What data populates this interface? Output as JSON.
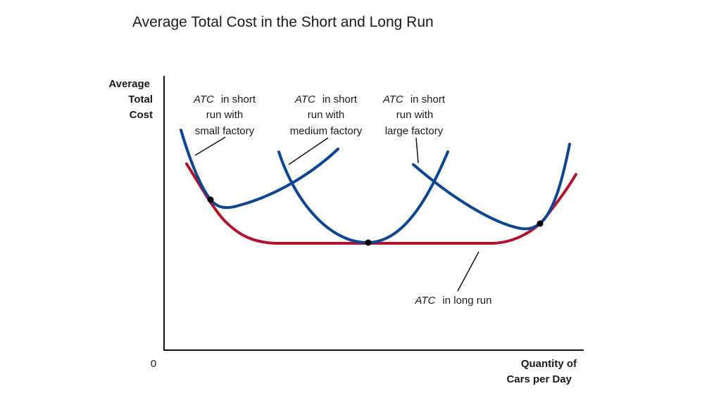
{
  "chart_data": {
    "type": "line",
    "title": "Average Total Cost in the Short and Long Run",
    "ylabel": [
      "Average",
      "Total",
      "Cost"
    ],
    "xlabel": [
      "Quantity of",
      "Cars per Day"
    ],
    "origin_label": "0",
    "colors": {
      "short_run": "#0b4594",
      "long_run": "#b3122e",
      "axis": "#111111"
    },
    "series": [
      {
        "id": "small",
        "name_italic": "ATC",
        "name_rest": "in short",
        "lines": [
          "run with",
          "small factory"
        ],
        "color": "#0b4594"
      },
      {
        "id": "medium",
        "name_italic": "ATC",
        "name_rest": "in short",
        "lines": [
          "run with",
          "medium factory"
        ],
        "color": "#0b4594"
      },
      {
        "id": "large",
        "name_italic": "ATC",
        "name_rest": "in short",
        "lines": [
          "run with",
          "large factory"
        ],
        "color": "#0b4594"
      },
      {
        "id": "long",
        "name_italic": "ATC",
        "name_rest": "in long run",
        "lines": [],
        "color": "#b3122e"
      }
    ]
  }
}
